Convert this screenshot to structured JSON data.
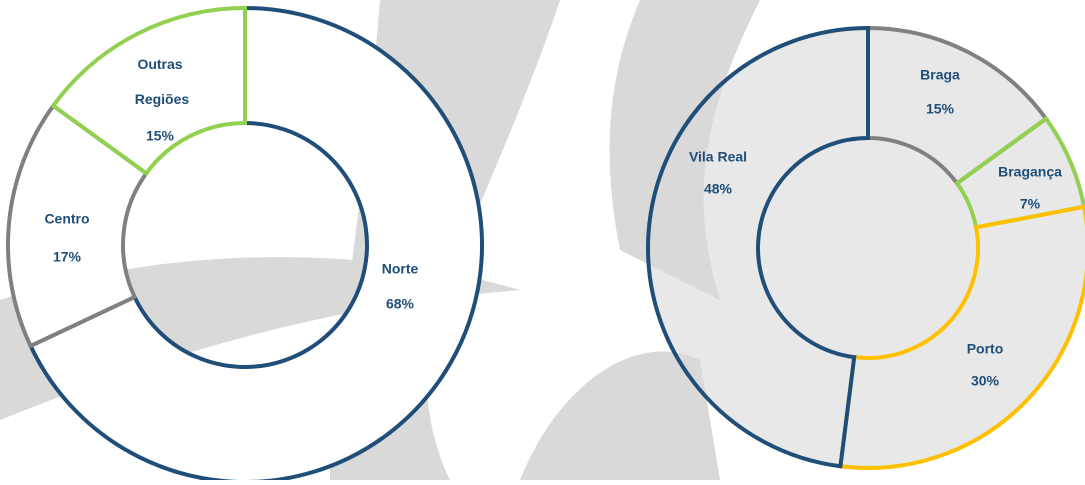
{
  "chart_data": [
    {
      "type": "donut",
      "categories": [
        "Norte",
        "Centro",
        "Outras Regiões"
      ],
      "values": [
        68,
        17,
        15
      ],
      "value_labels": [
        "68%",
        "17%",
        "15%"
      ],
      "colors": [
        "#1f4e79",
        "#808080",
        "#92d050"
      ]
    },
    {
      "type": "donut",
      "categories": [
        "Braga",
        "Bragança",
        "Porto",
        "Vila Real"
      ],
      "values": [
        15,
        7,
        30,
        48
      ],
      "value_labels": [
        "15%",
        "7%",
        "30%",
        "48%"
      ],
      "colors": [
        "#808080",
        "#92d050",
        "#ffc000",
        "#1f4e79"
      ]
    }
  ]
}
